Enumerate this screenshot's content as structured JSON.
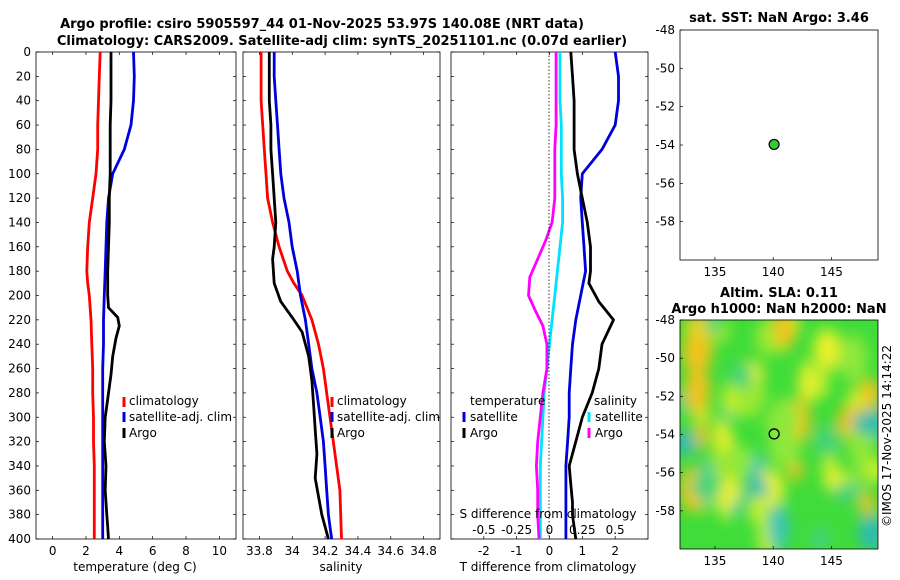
{
  "figure": {
    "title_line1": "Argo profile: csiro 5905597_44 01-Nov-2025 53.97S 140.08E (NRT data)",
    "title_line2": "Climatology: CARS2009. Satellite-adj clim: synTS_20251101.nc (0.07d earlier)",
    "credit": "©IMOS 17-Nov-2025 14:14:22"
  },
  "colors": {
    "climatology": "#ff0000",
    "satellite": "#0000dd",
    "argo": "#000000",
    "argo_salinity_diff": "#ff00ff",
    "sat_salinity_diff": "#00e0ff",
    "marker_fill": "#33cc33"
  },
  "chart_data": [
    {
      "type": "line",
      "id": "temperature",
      "xlabel": "temperature (deg C)",
      "xlim": [
        -1,
        11
      ],
      "xticks": [
        0,
        2,
        4,
        6,
        8,
        10
      ],
      "ylim": [
        0,
        400
      ],
      "yticks": [
        0,
        20,
        40,
        60,
        80,
        100,
        120,
        140,
        160,
        180,
        200,
        220,
        240,
        260,
        280,
        300,
        320,
        340,
        360,
        380,
        400
      ],
      "legend": [
        "climatology",
        "satellite-adj. clim",
        "Argo"
      ],
      "series": [
        {
          "name": "climatology",
          "x": [
            2.85,
            2.8,
            2.75,
            2.7,
            2.7,
            2.6,
            2.4,
            2.2,
            2.1,
            2.05,
            2.1,
            2.2,
            2.3,
            2.35,
            2.4,
            2.4,
            2.45,
            2.45,
            2.5,
            2.5,
            2.5,
            2.5
          ],
          "y": [
            0,
            20,
            40,
            60,
            80,
            100,
            120,
            140,
            160,
            180,
            190,
            200,
            220,
            240,
            260,
            280,
            300,
            320,
            340,
            360,
            380,
            400
          ]
        },
        {
          "name": "satellite-adj. clim",
          "x": [
            4.85,
            4.9,
            4.85,
            4.7,
            4.3,
            3.6,
            3.35,
            3.25,
            3.2,
            3.15,
            3.1,
            3.05,
            3.05,
            3.0,
            3.0,
            3.0,
            3.0,
            3.0,
            3.0,
            3.0
          ],
          "y": [
            0,
            20,
            40,
            60,
            80,
            100,
            120,
            140,
            160,
            180,
            200,
            220,
            240,
            260,
            280,
            300,
            320,
            340,
            360,
            400
          ]
        },
        {
          "name": "Argo",
          "x": [
            3.5,
            3.5,
            3.5,
            3.45,
            3.45,
            3.45,
            3.4,
            3.4,
            3.35,
            3.3,
            3.3,
            3.3,
            3.35,
            3.9,
            4.0,
            3.8,
            3.6,
            3.5,
            3.3,
            3.15,
            3.1,
            3.2,
            3.15,
            3.2,
            3.25,
            3.3,
            3.35
          ],
          "y": [
            0,
            20,
            40,
            60,
            80,
            100,
            120,
            140,
            160,
            180,
            190,
            200,
            210,
            218,
            225,
            235,
            250,
            265,
            285,
            300,
            320,
            340,
            360,
            370,
            380,
            390,
            400
          ]
        }
      ]
    },
    {
      "type": "line",
      "id": "salinity",
      "xlabel": "salinity",
      "xlim": [
        33.7,
        34.9
      ],
      "xticks": [
        33.8,
        34,
        34.2,
        34.4,
        34.6,
        34.8
      ],
      "ylim": [
        0,
        400
      ],
      "legend": [
        "climatology",
        "satellite-adj. clim",
        "Argo"
      ],
      "series": [
        {
          "name": "climatology",
          "x": [
            33.81,
            33.81,
            33.81,
            33.82,
            33.83,
            33.84,
            33.85,
            33.88,
            33.92,
            33.97,
            34.01,
            34.06,
            34.12,
            34.16,
            34.19,
            34.21,
            34.23,
            34.25,
            34.27,
            34.29,
            34.3
          ],
          "y": [
            0,
            20,
            40,
            60,
            80,
            100,
            120,
            140,
            160,
            180,
            190,
            200,
            220,
            240,
            260,
            280,
            300,
            320,
            340,
            360,
            400
          ]
        },
        {
          "name": "satellite-adj. clim",
          "x": [
            33.89,
            33.89,
            33.9,
            33.91,
            33.92,
            33.93,
            33.95,
            33.98,
            34.0,
            34.03,
            34.05,
            34.08,
            34.1,
            34.12,
            34.15,
            34.17,
            34.19,
            34.2,
            34.21,
            34.22,
            34.23,
            34.24
          ],
          "y": [
            0,
            20,
            40,
            60,
            80,
            100,
            120,
            140,
            160,
            180,
            200,
            220,
            240,
            260,
            280,
            300,
            320,
            340,
            360,
            380,
            390,
            400
          ]
        },
        {
          "name": "Argo",
          "x": [
            33.86,
            33.86,
            33.86,
            33.87,
            33.87,
            33.88,
            33.89,
            33.9,
            33.89,
            33.88,
            33.89,
            33.93,
            34.0,
            34.06,
            34.1,
            34.12,
            34.13,
            34.14,
            34.15,
            34.14,
            34.16,
            34.18,
            34.2,
            34.22
          ],
          "y": [
            0,
            20,
            40,
            60,
            80,
            100,
            120,
            140,
            160,
            170,
            190,
            205,
            218,
            230,
            250,
            270,
            290,
            310,
            330,
            350,
            365,
            380,
            390,
            400
          ]
        }
      ]
    },
    {
      "type": "line",
      "id": "differences",
      "xlabel": "T difference from climatology",
      "xlim": [
        -3,
        3
      ],
      "xticks": [
        -2,
        -1,
        0,
        1,
        2
      ],
      "s_axis_label": "S difference from climatology",
      "s_ticks": [
        "-0.5",
        "-0.25",
        "0",
        "0.25",
        "0.5"
      ],
      "s_tick_values": [
        -0.5,
        -0.25,
        0,
        0.25,
        0.5
      ],
      "ylim": [
        0,
        400
      ],
      "legend_left_title": "temperature",
      "legend_left": [
        "satellite",
        "Argo"
      ],
      "legend_right_title": "salinity",
      "legend_right": [
        "satellite",
        "Argo"
      ],
      "series": [
        {
          "name": "T satellite",
          "x": [
            2.0,
            2.1,
            2.1,
            2.0,
            1.6,
            1.0,
            0.95,
            1.0,
            1.05,
            1.1,
            0.95,
            0.8,
            0.7,
            0.65,
            0.6,
            0.6,
            0.55,
            0.5,
            0.5,
            0.5
          ],
          "y": [
            0,
            20,
            40,
            60,
            80,
            100,
            120,
            140,
            160,
            180,
            200,
            220,
            240,
            260,
            280,
            300,
            320,
            340,
            360,
            400
          ]
        },
        {
          "name": "T Argo",
          "x": [
            0.65,
            0.7,
            0.75,
            0.75,
            0.75,
            0.85,
            1.0,
            1.15,
            1.25,
            1.25,
            1.2,
            1.5,
            1.95,
            1.6,
            1.5,
            1.3,
            1.0,
            0.8,
            0.6,
            0.65,
            0.7,
            0.7,
            0.75,
            0.8
          ],
          "y": [
            0,
            20,
            40,
            60,
            80,
            100,
            120,
            140,
            160,
            180,
            190,
            205,
            220,
            240,
            260,
            280,
            300,
            320,
            340,
            355,
            370,
            380,
            390,
            400
          ]
        },
        {
          "name": "S satellite",
          "x": [
            0.08,
            0.08,
            0.08,
            0.09,
            0.09,
            0.09,
            0.1,
            0.1,
            0.08,
            0.06,
            0.04,
            0.02,
            0.0,
            -0.02,
            -0.04,
            -0.05,
            -0.06,
            -0.07,
            -0.07,
            -0.07
          ],
          "y": [
            0,
            20,
            40,
            60,
            80,
            100,
            120,
            140,
            160,
            180,
            200,
            220,
            240,
            260,
            280,
            300,
            320,
            340,
            360,
            400
          ]
        },
        {
          "name": "S Argo",
          "x": [
            0.05,
            0.05,
            0.05,
            0.05,
            0.04,
            0.04,
            0.04,
            0.02,
            -0.03,
            -0.09,
            -0.15,
            -0.16,
            -0.11,
            -0.05,
            -0.02,
            -0.02,
            -0.05,
            -0.07,
            -0.09,
            -0.1,
            -0.09,
            -0.09,
            -0.08
          ],
          "y": [
            0,
            20,
            40,
            60,
            80,
            100,
            120,
            140,
            155,
            170,
            185,
            200,
            212,
            225,
            240,
            260,
            280,
            300,
            320,
            340,
            360,
            380,
            400
          ]
        }
      ]
    },
    {
      "type": "scatter",
      "id": "sst-map",
      "title": "sat. SST: NaN Argo: 3.46",
      "xlim": [
        132,
        149
      ],
      "xticks": [
        135,
        140,
        145
      ],
      "ylim": [
        -60,
        -48
      ],
      "yticks": [
        -48,
        -50,
        -52,
        -54,
        -56,
        -58
      ],
      "points": [
        {
          "lon": 140.08,
          "lat": -53.97
        }
      ]
    },
    {
      "type": "heatmap",
      "id": "sla-map",
      "title_line1": "Altim. SLA: 0.11",
      "title_line2": "Argo h1000: NaN h2000: NaN",
      "xlim": [
        132,
        149
      ],
      "xticks": [
        135,
        140,
        145
      ],
      "ylim": [
        -60,
        -48
      ],
      "yticks": [
        -48,
        -50,
        -52,
        -54,
        -56,
        -58
      ],
      "points": [
        {
          "lon": 140.08,
          "lat": -53.97
        }
      ]
    }
  ]
}
